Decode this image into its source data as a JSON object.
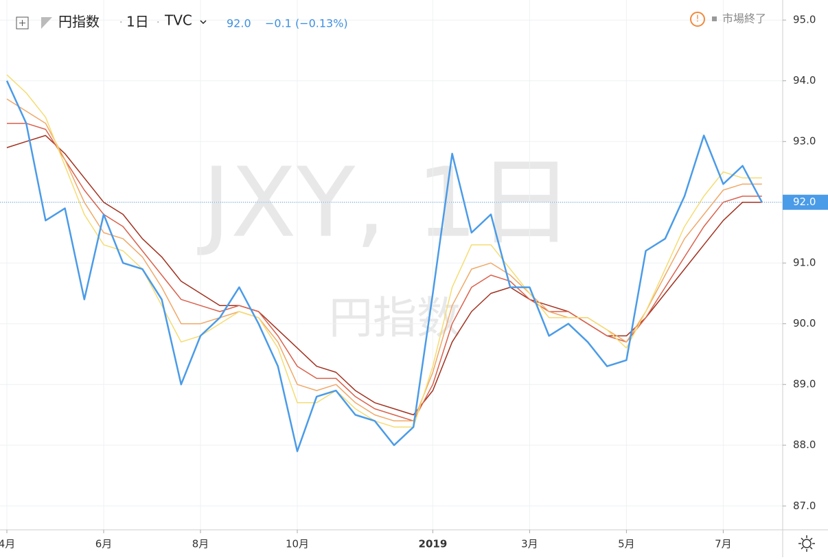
{
  "header": {
    "symbol": "円指数",
    "interval": "1日",
    "exchange": "TVC",
    "last": "92.0",
    "change": "−0.1 (−0.13%)",
    "status": "市場終了"
  },
  "watermark": {
    "title": "JXY, 1日",
    "subtitle": "円指数"
  },
  "chart_data": {
    "type": "line",
    "categories": [
      "4月",
      null,
      null,
      null,
      null,
      "6月",
      null,
      null,
      null,
      null,
      "8月",
      null,
      null,
      null,
      null,
      "10月",
      null,
      null,
      null,
      null,
      null,
      null,
      "2019",
      null,
      null,
      null,
      null,
      "3月",
      null,
      null,
      null,
      null,
      "5月",
      null,
      null,
      null,
      null,
      "7月",
      null,
      null
    ],
    "series": [
      {
        "color": "#a0301e",
        "values": [
          92.9,
          93.0,
          93.1,
          92.8,
          92.4,
          92.0,
          91.8,
          91.4,
          91.1,
          90.7,
          90.5,
          90.3,
          90.3,
          90.2,
          89.9,
          89.6,
          89.3,
          89.2,
          88.9,
          88.7,
          88.6,
          88.5,
          88.9,
          89.7,
          90.2,
          90.5,
          90.6,
          90.4,
          90.3,
          90.2,
          90.0,
          89.8,
          89.8,
          90.1,
          90.5,
          90.9,
          91.3,
          91.7,
          92.0,
          92.0
        ]
      },
      {
        "color": "#d9604a",
        "values": [
          93.3,
          93.3,
          93.2,
          92.7,
          92.2,
          91.8,
          91.6,
          91.2,
          90.8,
          90.4,
          90.3,
          90.2,
          90.3,
          90.2,
          89.8,
          89.3,
          89.1,
          89.1,
          88.8,
          88.6,
          88.5,
          88.4,
          89.0,
          90.0,
          90.6,
          90.8,
          90.7,
          90.4,
          90.2,
          90.2,
          90.0,
          89.8,
          89.7,
          90.1,
          90.6,
          91.1,
          91.6,
          92.0,
          92.1,
          92.1
        ]
      },
      {
        "color": "#f0a868",
        "values": [
          93.7,
          93.5,
          93.3,
          92.7,
          92.0,
          91.5,
          91.4,
          91.1,
          90.6,
          90.0,
          90.0,
          90.1,
          90.2,
          90.1,
          89.7,
          89.0,
          88.9,
          89.0,
          88.7,
          88.5,
          88.4,
          88.4,
          89.2,
          90.3,
          90.9,
          91.0,
          90.8,
          90.5,
          90.2,
          90.1,
          90.1,
          89.9,
          89.7,
          90.2,
          90.8,
          91.4,
          91.8,
          92.2,
          92.3,
          92.3
        ]
      },
      {
        "color": "#f5dc72",
        "values": [
          94.1,
          93.8,
          93.4,
          92.6,
          91.8,
          91.3,
          91.2,
          90.9,
          90.3,
          89.7,
          89.8,
          90.0,
          90.2,
          90.1,
          89.6,
          88.7,
          88.7,
          88.9,
          88.6,
          88.4,
          88.3,
          88.3,
          89.3,
          90.6,
          91.3,
          91.3,
          90.9,
          90.5,
          90.1,
          90.1,
          90.1,
          89.9,
          89.6,
          90.2,
          90.9,
          91.6,
          92.1,
          92.5,
          92.4,
          92.4
        ]
      },
      {
        "color": "#4a9be8",
        "values": [
          94.0,
          93.3,
          91.7,
          91.9,
          90.4,
          91.8,
          91.0,
          90.9,
          90.4,
          89.0,
          89.8,
          90.1,
          90.6,
          90.0,
          89.3,
          87.9,
          88.8,
          88.9,
          88.5,
          88.4,
          88.0,
          88.3,
          90.5,
          92.8,
          91.5,
          91.8,
          90.6,
          90.6,
          89.8,
          90.0,
          89.7,
          89.3,
          89.4,
          91.2,
          91.4,
          92.1,
          93.1,
          92.3,
          92.6,
          92.0
        ]
      }
    ],
    "ylim": [
      86.63,
      95.33
    ],
    "yticks": [
      {
        "value": 87,
        "label": "87.0"
      },
      {
        "value": 88,
        "label": "88.0"
      },
      {
        "value": 89,
        "label": "89.0"
      },
      {
        "value": 90,
        "label": "90.0"
      },
      {
        "value": 91,
        "label": "91.0"
      },
      {
        "value": 92,
        "label": "92.0"
      },
      {
        "value": 93,
        "label": "93.0"
      },
      {
        "value": 94,
        "label": "94.0"
      },
      {
        "value": 95,
        "label": "95.0"
      }
    ],
    "last_value": {
      "value": 92,
      "label": "92.0"
    },
    "grid": true
  }
}
